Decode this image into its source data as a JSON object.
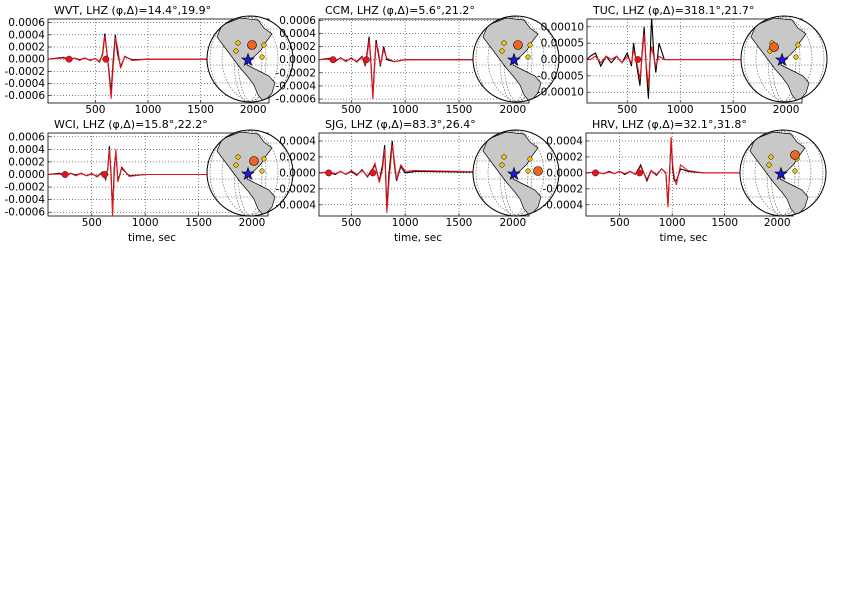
{
  "chart_data": [
    {
      "type": "line",
      "title": "WVT, LHZ (φ,Δ)=14.4°,19.9°",
      "x": [
        50,
        200,
        250,
        300,
        350,
        400,
        450,
        500,
        540,
        570,
        590,
        610,
        630,
        650,
        670,
        690,
        710,
        740,
        780,
        850,
        1000,
        2150
      ],
      "series": [
        {
          "color": "#000000",
          "values": [
            0,
            3e-05,
            -2e-05,
            2e-05,
            -1e-05,
            2e-05,
            -2e-05,
            1e-05,
            -5e-05,
            0.0001,
            0.00042,
            0.0001,
            -0.0002,
            -0.00055,
            0,
            0.0004,
            0.0001,
            -0.00012,
            4e-05,
            -1e-05,
            0,
            0
          ]
        },
        {
          "color": "#e8141b",
          "values": [
            0,
            2e-05,
            -3e-05,
            2e-05,
            -2e-05,
            2e-05,
            -2e-05,
            1e-05,
            -4e-05,
            8e-05,
            0.00038,
            0.00012,
            -0.00025,
            -0.00065,
            -0.0001,
            0.00035,
            0.0002,
            -0.00015,
            5e-05,
            -2e-05,
            0,
            0
          ]
        }
      ],
      "markers": {
        "color": "#e8141b",
        "x": [
          250,
          600
        ],
        "values": [
          0,
          0
        ]
      },
      "xlim": [
        50,
        2150
      ],
      "ylim": [
        -0.00072,
        0.00066
      ],
      "xticks": [
        500,
        1000,
        1500,
        2000
      ],
      "yticks": [
        0.0006,
        0.0004,
        0.0002,
        {
          "value": 0,
          "label": "0.0000"
        },
        -0.0002,
        -0.0004,
        -0.0006
      ],
      "grid": true
    },
    {
      "type": "line",
      "title": "CCM, LHZ (φ,Δ)=5.6°,21.2°",
      "x": [
        200,
        300,
        350,
        400,
        450,
        500,
        550,
        600,
        630,
        650,
        665,
        680,
        700,
        715,
        730,
        750,
        770,
        800,
        830,
        900,
        1000,
        2150
      ],
      "series": [
        {
          "color": "#000000",
          "values": [
            0,
            2e-05,
            -2e-05,
            3e-05,
            -2e-05,
            2e-05,
            -3e-05,
            5e-05,
            -0.0001,
            0.00015,
            0.00035,
            0,
            -0.00055,
            -0.0001,
            0.0003,
            0.0001,
            -0.0001,
            0.0002,
            0,
            -3e-05,
            0,
            0
          ]
        },
        {
          "color": "#e8141b",
          "values": [
            0,
            1e-05,
            -3e-05,
            3e-05,
            -3e-05,
            3e-05,
            -4e-05,
            4e-05,
            -8e-05,
            0.0001,
            0.0003,
            5e-05,
            -0.0006,
            -0.00015,
            0.00025,
            0.00015,
            -8e-05,
            0.00015,
            2e-05,
            -3e-05,
            0,
            0
          ]
        }
      ],
      "markers": {
        "color": "#e8141b",
        "x": [
          330,
          640
        ],
        "values": [
          0,
          0
        ]
      },
      "xlim": [
        200,
        2150
      ],
      "ylim": [
        -0.00066,
        0.00062
      ],
      "xticks": [
        500,
        1000,
        1500,
        2000
      ],
      "yticks": [
        0.0006,
        0.0004,
        0.0002,
        {
          "value": 0,
          "label": "0.0000"
        },
        -0.0002,
        -0.0004,
        -0.0006
      ],
      "grid": true
    },
    {
      "type": "line",
      "title": "TUC, LHZ (φ,Δ)=318.1°,21.7°",
      "x": [
        120,
        150,
        200,
        250,
        300,
        350,
        400,
        450,
        500,
        540,
        560,
        590,
        620,
        640,
        660,
        680,
        700,
        715,
        730,
        750,
        770,
        800,
        850,
        1000,
        2150
      ],
      "series": [
        {
          "color": "#000000",
          "values": [
            0,
            1e-05,
            2e-05,
            -2e-05,
            1e-05,
            -1e-05,
            1e-05,
            -1e-05,
            2e-05,
            -2e-05,
            5e-05,
            -2e-05,
            -8e-05,
            2e-05,
            0.0001,
            -3e-05,
            -0.00012,
            0,
            0.00013,
            2e-05,
            -4e-05,
            5e-05,
            0,
            0,
            0
          ]
        },
        {
          "color": "#e8141b",
          "values": [
            0,
            0,
            1e-05,
            -1e-05,
            1e-05,
            0,
            1e-05,
            -1e-05,
            1e-05,
            -1e-05,
            3e-05,
            -1e-05,
            -6e-05,
            1e-05,
            8e-05,
            -2e-05,
            -8e-05,
            0,
            4e-05,
            1e-05,
            -2e-05,
            1e-05,
            0,
            0,
            0
          ]
        }
      ],
      "markers": {
        "color": "#e8141b",
        "x": [
          600
        ],
        "values": [
          0
        ]
      },
      "xlim": [
        120,
        2150
      ],
      "ylim": [
        -0.000133,
        0.000124
      ],
      "xticks": [
        500,
        1000,
        1500,
        2000
      ],
      "yticks": [
        {
          "value": 0.0001,
          "label": "0.00010"
        },
        5e-05,
        {
          "value": 0,
          "label": "0.00000"
        },
        -5e-05,
        {
          "value": -0.0001,
          "label": "-0.00010"
        }
      ],
      "grid": true
    },
    {
      "type": "line",
      "title": "WCI, LHZ (φ,Δ)=15.8°,22.2°",
      "xlabel": "time, sec",
      "x": [
        90,
        200,
        250,
        300,
        350,
        400,
        450,
        500,
        550,
        600,
        630,
        650,
        665,
        680,
        695,
        710,
        725,
        745,
        780,
        850,
        1000,
        2150
      ],
      "series": [
        {
          "color": "#000000",
          "values": [
            0,
            2e-05,
            -2e-05,
            2e-05,
            -1e-05,
            2e-05,
            -2e-05,
            1e-05,
            -3e-05,
            4e-05,
            -8e-05,
            0.0001,
            0.00045,
            0,
            -0.0006,
            0.0001,
            0.00035,
            -0.0001,
            0.0001,
            -2e-05,
            0,
            0
          ]
        },
        {
          "color": "#e8141b",
          "values": [
            0,
            1e-05,
            -3e-05,
            2e-05,
            -2e-05,
            2e-05,
            -2e-05,
            2e-05,
            -4e-05,
            3e-05,
            -6e-05,
            8e-05,
            0.0004,
            5e-05,
            -0.00065,
            0,
            0.0004,
            -0.00012,
            0.00012,
            -3e-05,
            0,
            0
          ]
        }
      ],
      "markers": {
        "color": "#e8141b",
        "x": [
          250,
          620
        ],
        "values": [
          0,
          0
        ]
      },
      "xlim": [
        90,
        2150
      ],
      "ylim": [
        -0.00066,
        0.00066
      ],
      "xticks": [
        500,
        1000,
        1500,
        2000
      ],
      "yticks": [
        0.0006,
        0.0004,
        0.0002,
        {
          "value": 0,
          "label": "0.0000"
        },
        -0.0002,
        -0.0004,
        -0.0006
      ],
      "grid": true
    },
    {
      "type": "line",
      "title": "SJG, LHZ (φ,Δ)=83.3°,26.4°",
      "xlabel": "time, sec",
      "x": [
        200,
        290,
        350,
        400,
        450,
        500,
        550,
        600,
        650,
        700,
        720,
        760,
        790,
        810,
        830,
        850,
        880,
        900,
        920,
        960,
        1000,
        1100,
        2150
      ],
      "series": [
        {
          "color": "#000000",
          "values": [
            0,
            1e-05,
            -2e-05,
            2e-05,
            -2e-05,
            2e-05,
            -3e-05,
            4e-05,
            -5e-05,
            5e-05,
            0.0001,
            -0.0001,
            0.0001,
            0.00035,
            -0.00045,
            0,
            0.0004,
            0.0001,
            -0.0001,
            8e-05,
            0,
            2e-05,
            0
          ]
        },
        {
          "color": "#e8141b",
          "values": [
            0,
            1e-05,
            -1e-05,
            2e-05,
            -2e-05,
            3e-05,
            -2e-05,
            3e-05,
            -4e-05,
            6e-05,
            0.00012,
            -0.00012,
            5e-05,
            0.0003,
            -0.0005,
            -0.0001,
            0.00035,
            0.00015,
            -8e-05,
            0.0001,
            2e-05,
            3e-05,
            0
          ]
        }
      ],
      "markers": {
        "color": "#e8141b",
        "x": [
          290,
          700
        ],
        "values": [
          0,
          0
        ]
      },
      "xlim": [
        200,
        2150
      ],
      "ylim": [
        -0.00054,
        0.0005
      ],
      "xticks": [
        500,
        1000,
        1500,
        2000
      ],
      "yticks": [
        0.0004,
        0.0002,
        {
          "value": 0,
          "label": "0.0000"
        },
        -0.0002,
        -0.0004
      ],
      "grid": true
    },
    {
      "type": "line",
      "title": "HRV, LHZ (φ,Δ)=32.1°,31.8°",
      "xlabel": "time, sec",
      "x": [
        180,
        270,
        350,
        400,
        450,
        500,
        550,
        600,
        650,
        700,
        760,
        800,
        850,
        900,
        940,
        960,
        975,
        990,
        1005,
        1020,
        1040,
        1080,
        1150,
        1300,
        2150
      ],
      "series": [
        {
          "color": "#000000",
          "values": [
            0,
            1e-05,
            -1e-05,
            2e-05,
            -1e-05,
            2e-05,
            -2e-05,
            2e-05,
            -2e-05,
            0.0001,
            -0.0001,
            3e-05,
            -3e-05,
            5e-05,
            0,
            -0.0004,
            0,
            0.0004,
            5e-05,
            -0.0001,
            -0.0001,
            5e-05,
            2e-05,
            0,
            0
          ]
        },
        {
          "color": "#e8141b",
          "values": [
            0,
            1e-05,
            -1e-05,
            1e-05,
            -1e-05,
            2e-05,
            -1e-05,
            2e-05,
            -2e-05,
            8e-05,
            -8e-05,
            3e-05,
            -2e-05,
            5e-05,
            0,
            -0.00043,
            0,
            0.00045,
            0.0001,
            -5e-05,
            -0.00015,
            0.0001,
            3e-05,
            0,
            0
          ]
        }
      ],
      "markers": {
        "color": "#e8141b",
        "x": [
          270,
          690
        ],
        "values": [
          0,
          0
        ]
      },
      "xlim": [
        180,
        2150
      ],
      "ylim": [
        -0.00054,
        0.0005
      ],
      "xticks": [
        500,
        1000,
        1500,
        2000
      ],
      "yticks": [
        0.0004,
        0.0002,
        {
          "value": 0,
          "label": "0.0000"
        },
        -0.0002,
        -0.0004
      ],
      "grid": true
    }
  ]
}
